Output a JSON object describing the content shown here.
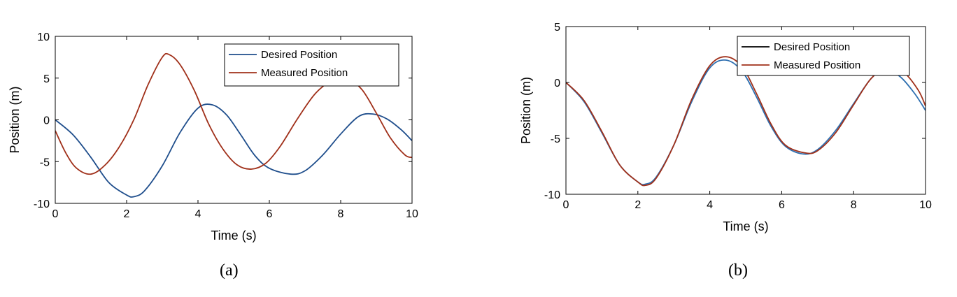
{
  "colors": {
    "desired_a": "#1f4e8c",
    "measured": "#a0301a",
    "desired_b_legend": "#000000",
    "desired_b_line": "#2e6fb0"
  },
  "chart_data": [
    {
      "type": "line",
      "caption": "(a)",
      "xlabel": "Time (s)",
      "ylabel": "Position (m)",
      "xlim": [
        0,
        10
      ],
      "ylim": [
        -10,
        10
      ],
      "xticks": [
        0,
        2,
        4,
        6,
        8,
        10
      ],
      "yticks": [
        -10,
        -5,
        0,
        5,
        10
      ],
      "legend_position": "top-right",
      "series": [
        {
          "name": "Desired Position",
          "color": "#1f4e8c",
          "x": [
            0,
            0.5,
            1,
            1.5,
            2,
            2.2,
            2.5,
            3,
            3.5,
            4,
            4.4,
            4.8,
            5.2,
            5.6,
            6,
            6.6,
            7,
            7.5,
            8,
            8.5,
            8.9,
            9.3,
            9.7,
            10
          ],
          "y": [
            0,
            -1.8,
            -4.5,
            -7.5,
            -9,
            -9.2,
            -8.5,
            -5.5,
            -1.5,
            1.4,
            1.8,
            0.6,
            -1.8,
            -4.3,
            -5.8,
            -6.5,
            -6.1,
            -4.2,
            -1.7,
            0.4,
            0.7,
            0.1,
            -1.2,
            -2.5
          ]
        },
        {
          "name": "Measured Position",
          "color": "#a0301a",
          "x": [
            0,
            0.3,
            0.6,
            1,
            1.4,
            1.8,
            2.2,
            2.6,
            3,
            3.2,
            3.5,
            3.9,
            4.3,
            4.7,
            5.1,
            5.5,
            5.9,
            6.3,
            6.8,
            7.3,
            7.8,
            8.2,
            8.6,
            9,
            9.4,
            9.8,
            10
          ],
          "y": [
            -1.3,
            -4,
            -5.8,
            -6.5,
            -5.4,
            -3.2,
            0,
            4.2,
            7.5,
            7.8,
            6.6,
            3.5,
            -0.5,
            -3.5,
            -5.4,
            -5.9,
            -5.2,
            -3.2,
            0.2,
            3.2,
            4.8,
            4.9,
            3.6,
            0.8,
            -2.2,
            -4.2,
            -4.5
          ]
        }
      ]
    },
    {
      "type": "line",
      "caption": "(b)",
      "xlabel": "Time (s)",
      "ylabel": "Position (m)",
      "xlim": [
        0,
        10
      ],
      "ylim": [
        -10,
        5
      ],
      "xticks": [
        0,
        2,
        4,
        6,
        8,
        10
      ],
      "yticks": [
        -10,
        -5,
        0,
        5
      ],
      "legend_position": "top-right",
      "series": [
        {
          "name": "Desired Position",
          "color": "#2e6fb0",
          "legend_color": "#000000",
          "x": [
            0,
            0.5,
            1,
            1.5,
            2,
            2.2,
            2.5,
            3,
            3.5,
            4,
            4.45,
            4.9,
            5.3,
            5.7,
            6.1,
            6.6,
            7,
            7.5,
            8,
            8.5,
            8.9,
            9.3,
            9.7,
            10
          ],
          "y": [
            0,
            -1.7,
            -4.5,
            -7.4,
            -8.9,
            -9.1,
            -8.5,
            -5.6,
            -1.7,
            1.3,
            2,
            1,
            -1.3,
            -3.9,
            -5.7,
            -6.4,
            -6,
            -4.3,
            -1.9,
            0.4,
            1.1,
            0.5,
            -1,
            -2.5
          ]
        },
        {
          "name": "Measured Position",
          "color": "#a0301a",
          "x": [
            0,
            0.5,
            1,
            1.5,
            2,
            2.2,
            2.5,
            3,
            3.5,
            4,
            4.45,
            4.9,
            5.3,
            5.7,
            6.1,
            6.65,
            7,
            7.5,
            8,
            8.5,
            9,
            9.4,
            9.8,
            10
          ],
          "y": [
            0,
            -1.6,
            -4.4,
            -7.4,
            -8.9,
            -9.2,
            -8.6,
            -5.6,
            -1.5,
            1.5,
            2.3,
            1.4,
            -1,
            -3.7,
            -5.6,
            -6.3,
            -6.1,
            -4.5,
            -2,
            0.4,
            1.4,
            0.9,
            -0.7,
            -2.1
          ]
        }
      ]
    }
  ]
}
